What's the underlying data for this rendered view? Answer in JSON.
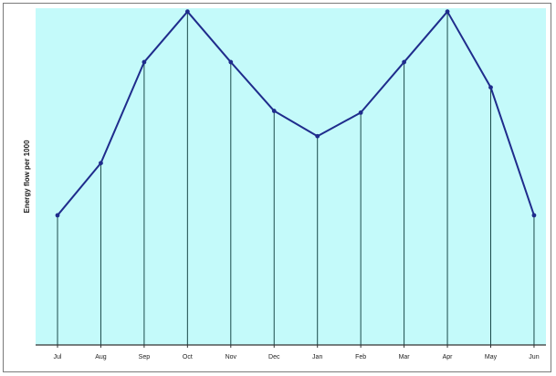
{
  "chart_data": {
    "type": "line",
    "title": "",
    "xlabel": "",
    "ylabel": "Energy flow per 1000",
    "categories": [
      "Jul",
      "Aug",
      "Sep",
      "Oct",
      "Nov",
      "Dec",
      "Jan",
      "Feb",
      "Mar",
      "Apr",
      "May",
      "Jun"
    ],
    "series": [
      {
        "values": [
          38.5,
          54,
          84,
          99,
          84,
          69.5,
          62,
          69,
          84,
          99,
          76.5,
          38.5
        ]
      }
    ],
    "ylim": [
      0,
      100
    ],
    "grid": false,
    "drop_lines": true,
    "legend": "none",
    "colors": {
      "plot_background": "#c4fafa",
      "line": "#1f2c8c",
      "marker": "#1f2c8c",
      "drop_line": "#1b4a4a",
      "axis": "#333333"
    }
  }
}
